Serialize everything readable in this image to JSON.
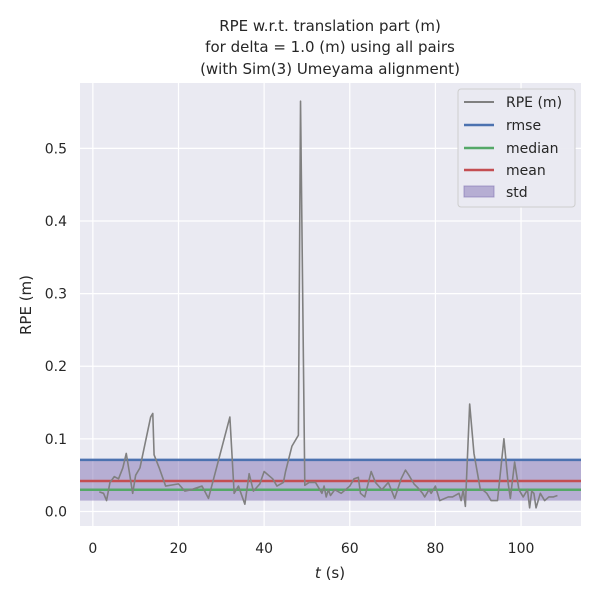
{
  "chart_data": {
    "type": "line",
    "title": [
      "RPE w.r.t. translation part (m)",
      "for delta = 1.0 (m) using all pairs",
      "(with Sim(3) Umeyama alignment)"
    ],
    "xlabel": "t (s)",
    "xlabel_italic": "t",
    "xlabel_rest": " (s)",
    "ylabel": "RPE (m)",
    "xlim": [
      -3,
      114
    ],
    "ylim": [
      -0.02,
      0.59
    ],
    "xticks": [
      0,
      20,
      40,
      60,
      80,
      100
    ],
    "yticks": [
      0.0,
      0.1,
      0.2,
      0.3,
      0.4,
      0.5
    ],
    "ytick_labels": [
      "0.0",
      "0.1",
      "0.2",
      "0.3",
      "0.4",
      "0.5"
    ],
    "series": [
      {
        "name": "RPE (m)",
        "color": "#808080",
        "x": [
          1.5,
          2.5,
          3.2,
          4.0,
          5.0,
          6.0,
          7.0,
          7.8,
          8.5,
          9.3,
          10.0,
          11.0,
          13.5,
          14.0,
          14.3,
          15.5,
          17.0,
          20.0,
          21.5,
          23.0,
          25.5,
          27.0,
          32.0,
          33.0,
          34.0,
          35.5,
          36.5,
          37.5,
          39.0,
          40.0,
          42.0,
          43.0,
          44.5,
          45.0,
          46.5,
          48.0,
          48.5,
          49.5,
          50.5,
          52.0,
          53.0,
          53.5,
          54.0,
          54.5,
          55.0,
          55.5,
          56.5,
          58.0,
          60.0,
          61.0,
          62.0,
          62.5,
          63.5,
          65.0,
          66.0,
          67.5,
          69.0,
          70.5,
          72.0,
          73.0,
          73.8,
          75.0,
          76.0,
          77.0,
          77.5,
          78.5,
          79.0,
          80.0,
          81.0,
          83.0,
          84.0,
          85.5,
          86.0,
          86.5,
          87.0,
          88.0,
          89.0,
          90.5,
          91.0,
          92.0,
          93.0,
          94.5,
          96.0,
          97.0,
          97.5,
          98.5,
          99.5,
          100.5,
          101.5,
          102.0,
          102.5,
          103.0,
          103.5,
          104.5,
          105.5,
          106.5,
          107.5,
          108.5
        ],
        "y": [
          0.027,
          0.025,
          0.015,
          0.04,
          0.048,
          0.045,
          0.06,
          0.08,
          0.055,
          0.025,
          0.05,
          0.06,
          0.13,
          0.135,
          0.078,
          0.06,
          0.035,
          0.038,
          0.028,
          0.03,
          0.035,
          0.018,
          0.13,
          0.025,
          0.035,
          0.01,
          0.052,
          0.028,
          0.038,
          0.055,
          0.045,
          0.035,
          0.04,
          0.055,
          0.09,
          0.105,
          0.565,
          0.036,
          0.04,
          0.04,
          0.03,
          0.025,
          0.035,
          0.02,
          0.03,
          0.022,
          0.03,
          0.025,
          0.035,
          0.045,
          0.047,
          0.025,
          0.02,
          0.055,
          0.04,
          0.03,
          0.04,
          0.018,
          0.045,
          0.057,
          0.05,
          0.038,
          0.032,
          0.025,
          0.02,
          0.03,
          0.025,
          0.035,
          0.015,
          0.02,
          0.02,
          0.025,
          0.015,
          0.03,
          0.007,
          0.148,
          0.08,
          0.03,
          0.03,
          0.025,
          0.015,
          0.015,
          0.1,
          0.038,
          0.018,
          0.068,
          0.03,
          0.02,
          0.03,
          0.005,
          0.028,
          0.025,
          0.005,
          0.025,
          0.015,
          0.02,
          0.02,
          0.022
        ]
      }
    ],
    "stats": {
      "rmse": {
        "name": "rmse",
        "value": 0.071,
        "color": "#4c72b0"
      },
      "median": {
        "name": "median",
        "value": 0.03,
        "color": "#55a868"
      },
      "mean": {
        "name": "mean",
        "value": 0.042,
        "color": "#c44e52"
      },
      "std": {
        "name": "std",
        "low": 0.015,
        "high": 0.07,
        "color": "#8172b3"
      }
    },
    "legend": {
      "position": "top-right",
      "entries": [
        "RPE (m)",
        "rmse",
        "median",
        "mean",
        "std"
      ]
    },
    "grid": true
  }
}
